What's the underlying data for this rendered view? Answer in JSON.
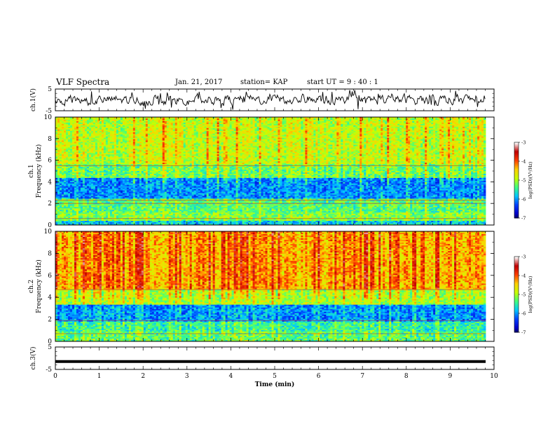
{
  "header": {
    "title": "VLF Spectra",
    "date": "Jan. 21, 2017",
    "station": "station= KAP",
    "start": "start  UT =  9 : 40 : 1"
  },
  "chart_data": [
    {
      "type": "line",
      "id": "ch1-voltage",
      "ylabel": "ch.1(V)",
      "ylim": [
        -5,
        5
      ],
      "yticks": [
        -5,
        5
      ],
      "xlim": [
        0,
        10
      ],
      "description_values": "noisy waveform, amplitude roughly -3 to 3 V around 0"
    },
    {
      "type": "heatmap",
      "id": "ch1-spectrogram",
      "ylabel_top": "ch.1",
      "ylabel": "Frequency (kHz)",
      "ylim": [
        0,
        10
      ],
      "yticks": [
        0,
        2,
        4,
        6,
        8,
        10
      ],
      "xlim": [
        0,
        10
      ],
      "colorbar": {
        "label": "log(PSD)(V²/Hz)",
        "ticks": [
          -3,
          -4,
          -5,
          -6,
          -7
        ],
        "range": [
          -7,
          -3
        ]
      }
    },
    {
      "type": "heatmap",
      "id": "ch2-spectrogram",
      "ylabel_top": "ch.2",
      "ylabel": "Frequency (kHz)",
      "ylim": [
        0,
        10
      ],
      "yticks": [
        0,
        2,
        4,
        6,
        8,
        10
      ],
      "xlim": [
        0,
        10
      ],
      "colorbar": {
        "label": "log(PSD)(V²/Hz)",
        "ticks": [
          -3,
          -4,
          -5,
          -6,
          -7
        ],
        "range": [
          -7,
          -3
        ]
      }
    },
    {
      "type": "line",
      "id": "ch3-voltage",
      "ylabel": "ch.3(V)",
      "ylim": [
        -5,
        5
      ],
      "yticks": [
        -5,
        5
      ],
      "xlim": [
        0,
        10
      ],
      "xticks": [
        0,
        1,
        2,
        3,
        4,
        5,
        6,
        7,
        8,
        9,
        10
      ],
      "xlabel": "Time (min)",
      "level": -1.5
    }
  ],
  "colors": {
    "line": "#000000",
    "cmap": [
      "#000000",
      "#0000c8",
      "#0040ff",
      "#00c8ff",
      "#40ff80",
      "#c8ff00",
      "#ffd000",
      "#ff4000",
      "#c00000",
      "#ffffff"
    ]
  }
}
